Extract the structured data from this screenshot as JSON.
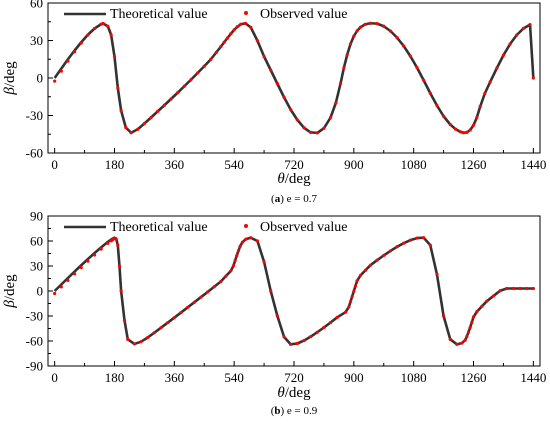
{
  "chart_data": [
    {
      "type": "line",
      "caption_letter": "(a)",
      "caption_text": "e = 0.7",
      "ylabel_symbol": "β",
      "ylabel_unit": "/deg",
      "xlabel_symbol": "θ",
      "xlabel_unit": "/deg",
      "xlim": [
        -20,
        1460
      ],
      "ylim": [
        -60,
        60
      ],
      "xticks": [
        0,
        180,
        360,
        540,
        720,
        900,
        1080,
        1260,
        1440
      ],
      "yticks": [
        -60,
        -30,
        0,
        30,
        60
      ],
      "eccentricity": 0.7,
      "legend_position": "top",
      "series": [
        {
          "name": "Theoretical value",
          "style": "line",
          "color": "#333333",
          "x": [
            0,
            20,
            40,
            60,
            80,
            100,
            120,
            140,
            146,
            160,
            170,
            180,
            190,
            200,
            214,
            230,
            250,
            270,
            290,
            310,
            330,
            350,
            370,
            390,
            410,
            430,
            450,
            470,
            486,
            500,
            510,
            520,
            530,
            540,
            550,
            560,
            574,
            590,
            610,
            630,
            650,
            670,
            690,
            710,
            730,
            750,
            770,
            790,
            810,
            830,
            846,
            860,
            870,
            880,
            890,
            900,
            910,
            920,
            934,
            950,
            970,
            990,
            1010,
            1030,
            1050,
            1070,
            1090,
            1110,
            1130,
            1150,
            1170,
            1190,
            1206,
            1220,
            1230,
            1240,
            1250,
            1260,
            1270,
            1280,
            1294,
            1310,
            1330,
            1350,
            1370,
            1390,
            1410,
            1430,
            1440
          ],
          "y": [
            0,
            7.5,
            15.0,
            22.0,
            28.6,
            34.6,
            39.6,
            43.1,
            43.6,
            41.4,
            34.4,
            17.2,
            -8.0,
            -26.1,
            -39.6,
            -43.8,
            -41.0,
            -36.4,
            -31.6,
            -26.7,
            -21.8,
            -16.8,
            -11.8,
            -6.6,
            -1.4,
            4.0,
            9.4,
            15.0,
            20.4,
            25.1,
            28.6,
            32.0,
            35.4,
            38.5,
            41.1,
            43.0,
            43.7,
            40.5,
            29.8,
            17.2,
            6.3,
            -4.6,
            -15.4,
            -25.3,
            -33.5,
            -39.8,
            -43.5,
            -43.9,
            -40.2,
            -31.6,
            -19.8,
            -4.4,
            8.0,
            18.6,
            27.2,
            33.5,
            37.8,
            40.6,
            42.9,
            43.8,
            43.5,
            41.4,
            37.6,
            32.3,
            25.6,
            17.5,
            8.3,
            -1.8,
            -12.2,
            -22.0,
            -30.6,
            -37.2,
            -40.9,
            -43.0,
            -43.8,
            -43.5,
            -41.6,
            -37.8,
            -31.6,
            -22.9,
            -12.4,
            -3.2,
            7.8,
            18.2,
            27.2,
            34.4,
            39.6,
            42.7,
            0
          ]
        },
        {
          "name": "Observed value",
          "style": "dots",
          "color": "#ff0000",
          "x": [
            0,
            20,
            40,
            60,
            80,
            100,
            120,
            140,
            146,
            160,
            170,
            180,
            190,
            200,
            214,
            230,
            250,
            270,
            290,
            310,
            330,
            350,
            370,
            390,
            410,
            430,
            450,
            470,
            486,
            500,
            510,
            520,
            530,
            540,
            550,
            560,
            574,
            590,
            610,
            630,
            650,
            670,
            690,
            710,
            730,
            750,
            770,
            790,
            810,
            830,
            846,
            860,
            870,
            880,
            890,
            900,
            910,
            920,
            934,
            950,
            970,
            990,
            1010,
            1030,
            1050,
            1070,
            1090,
            1110,
            1130,
            1150,
            1170,
            1190,
            1206,
            1220,
            1230,
            1240,
            1250,
            1260,
            1270,
            1280,
            1294,
            1310,
            1330,
            1350,
            1370,
            1390,
            1410,
            1430,
            1440
          ],
          "y": [
            -2.5,
            5.5,
            13.5,
            21.0,
            28.0,
            34.4,
            39.6,
            43.1,
            43.6,
            41.4,
            34.4,
            17.2,
            -8.0,
            -26.1,
            -39.6,
            -43.8,
            -41.0,
            -36.4,
            -31.6,
            -26.7,
            -21.8,
            -16.8,
            -11.8,
            -6.6,
            -1.4,
            4.0,
            9.4,
            15.0,
            20.4,
            25.1,
            28.6,
            32.0,
            35.4,
            38.5,
            41.1,
            43.0,
            43.7,
            40.5,
            29.8,
            17.2,
            6.3,
            -4.6,
            -15.4,
            -25.3,
            -33.5,
            -39.8,
            -43.5,
            -43.9,
            -40.2,
            -31.6,
            -19.8,
            -4.4,
            8.0,
            18.6,
            27.2,
            33.5,
            37.8,
            40.6,
            42.9,
            43.8,
            43.5,
            41.4,
            37.6,
            32.3,
            25.6,
            17.5,
            8.3,
            -1.8,
            -12.2,
            -22.0,
            -30.6,
            -37.2,
            -40.9,
            -43.0,
            -43.8,
            -43.5,
            -41.6,
            -37.8,
            -31.6,
            -22.9,
            -12.4,
            -3.2,
            7.8,
            18.2,
            27.2,
            34.4,
            39.6,
            42.7,
            0
          ]
        }
      ]
    },
    {
      "type": "line",
      "caption_letter": "(b)",
      "caption_text": "e = 0.9",
      "ylabel_symbol": "β",
      "ylabel_unit": "/deg",
      "xlabel_symbol": "θ",
      "xlabel_unit": "/deg",
      "xlim": [
        -20,
        1460
      ],
      "ylim": [
        -90,
        90
      ],
      "xticks": [
        0,
        180,
        360,
        540,
        720,
        900,
        1080,
        1260,
        1440
      ],
      "yticks": [
        -90,
        -60,
        -30,
        0,
        30,
        60,
        90
      ],
      "eccentricity": 0.9,
      "legend_position": "top",
      "series": [
        {
          "name": "Theoretical value",
          "style": "line",
          "color": "#333333",
          "x": [
            0,
            20,
            40,
            60,
            80,
            100,
            120,
            140,
            160,
            170,
            175,
            180,
            185,
            190,
            195,
            200,
            210,
            220,
            240,
            260,
            280,
            300,
            320,
            340,
            360,
            380,
            400,
            420,
            440,
            460,
            480,
            500,
            515,
            530,
            538,
            543,
            548,
            553,
            558,
            565,
            575,
            590,
            610,
            630,
            650,
            670,
            690,
            710,
            730,
            750,
            770,
            790,
            810,
            830,
            850,
            875,
            885,
            890,
            895,
            900,
            905,
            910,
            920,
            935,
            950,
            970,
            990,
            1010,
            1030,
            1050,
            1070,
            1090,
            1110,
            1130,
            1150,
            1170,
            1190,
            1210,
            1225,
            1235,
            1240,
            1245,
            1250,
            1255,
            1260,
            1270,
            1285,
            1300,
            1320,
            1340,
            1360,
            1380,
            1400,
            1420,
            1440
          ],
          "y": [
            0,
            7.8,
            15.6,
            23.3,
            30.9,
            38.3,
            45.5,
            52.4,
            58.9,
            61.8,
            63.0,
            64.0,
            63.0,
            55.0,
            30.0,
            0,
            -35.0,
            -58.0,
            -63.5,
            -60.8,
            -55.8,
            -50.0,
            -44.0,
            -38.0,
            -32.0,
            -25.9,
            -19.7,
            -13.6,
            -7.4,
            -1.2,
            5.1,
            11.4,
            17.8,
            24.1,
            30.4,
            36.6,
            42.7,
            48.4,
            53.7,
            58.6,
            62.2,
            63.9,
            60.0,
            35.0,
            0,
            -30.0,
            -55.0,
            -64.0,
            -63.0,
            -59.5,
            -54.8,
            -49.5,
            -43.8,
            -37.8,
            -31.6,
            -25.4,
            -19.1,
            -12.8,
            -6.5,
            -0.2,
            6.1,
            12.4,
            18.7,
            24.9,
            31.0,
            37.0,
            42.7,
            48.1,
            53.1,
            57.4,
            61.0,
            63.5,
            64.0,
            55.0,
            20.0,
            -30.0,
            -58.0,
            -64.0,
            -62.5,
            -59.0,
            -54.5,
            -49.3,
            -43.6,
            -37.5,
            -31.2,
            -24.9,
            -18.5,
            -12.2,
            -5.9,
            0.3,
            3.0,
            3.0,
            3.0,
            3.0,
            3.0
          ]
        },
        {
          "name": "Observed value",
          "style": "dots",
          "color": "#ff0000",
          "x": [
            0,
            20,
            40,
            60,
            80,
            100,
            120,
            140,
            160,
            170,
            175,
            180,
            185,
            190,
            195,
            200,
            210,
            220,
            240,
            260,
            280,
            300,
            320,
            340,
            360,
            380,
            400,
            420,
            440,
            460,
            480,
            500,
            515,
            530,
            538,
            543,
            548,
            553,
            558,
            565,
            575,
            590,
            610,
            630,
            650,
            670,
            690,
            710,
            730,
            750,
            770,
            790,
            810,
            830,
            850,
            875,
            885,
            890,
            895,
            900,
            905,
            910,
            920,
            935,
            950,
            970,
            990,
            1010,
            1030,
            1050,
            1070,
            1090,
            1110,
            1130,
            1150,
            1170,
            1190,
            1210,
            1225,
            1235,
            1240,
            1245,
            1250,
            1255,
            1260,
            1270,
            1285,
            1300,
            1320,
            1340,
            1360,
            1380,
            1400,
            1420,
            1440
          ],
          "y": [
            -3.0,
            5.0,
            12.8,
            20.5,
            28.2,
            35.8,
            43.2,
            50.4,
            57.2,
            60.2,
            61.6,
            63.0,
            62.5,
            55.0,
            30.0,
            0,
            -35.0,
            -58.0,
            -63.5,
            -60.8,
            -55.8,
            -50.0,
            -44.0,
            -38.0,
            -32.0,
            -25.9,
            -19.7,
            -13.6,
            -7.4,
            -1.2,
            5.1,
            11.4,
            17.8,
            24.1,
            30.4,
            36.6,
            42.7,
            48.4,
            53.7,
            58.6,
            62.2,
            63.9,
            60.0,
            35.0,
            0,
            -30.0,
            -55.0,
            -64.0,
            -63.0,
            -59.5,
            -54.8,
            -49.5,
            -43.8,
            -37.8,
            -31.6,
            -25.4,
            -19.1,
            -12.8,
            -6.5,
            -0.2,
            6.1,
            12.4,
            18.7,
            24.9,
            31.0,
            37.0,
            42.7,
            48.1,
            53.1,
            57.4,
            61.0,
            63.5,
            64.0,
            55.0,
            20.0,
            -30.0,
            -58.0,
            -64.0,
            -62.5,
            -59.0,
            -54.5,
            -49.3,
            -43.6,
            -37.5,
            -31.2,
            -24.9,
            -18.5,
            -12.2,
            -5.9,
            0.3,
            3.0,
            3.0,
            3.0,
            3.0,
            3.0
          ]
        }
      ]
    }
  ]
}
